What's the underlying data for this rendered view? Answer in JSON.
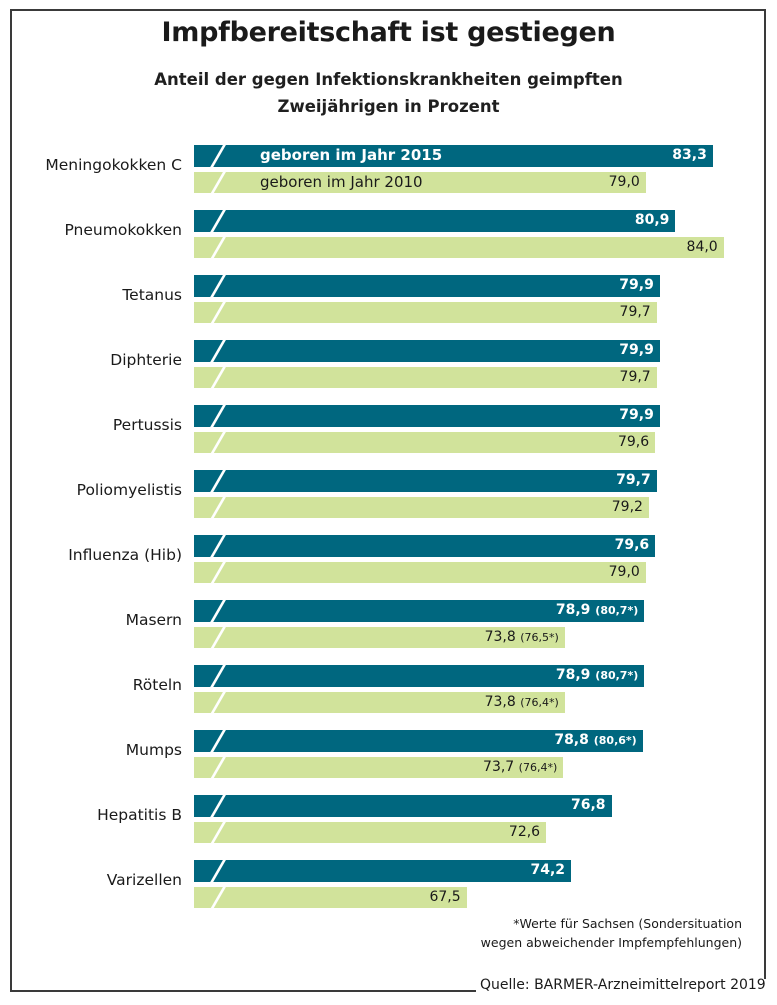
{
  "chart_data": {
    "type": "bar",
    "orientation": "horizontal",
    "title": "Impfbereitschaft ist gestiegen",
    "subtitle": [
      "Anteil der gegen Infektionskrankheiten geimpften",
      "Zweijährigen in Prozent"
    ],
    "xlabel": "",
    "ylabel": "",
    "xlim": [
      50,
      85
    ],
    "axis_break": true,
    "grid": false,
    "legend_placement": "inside-first-row",
    "categories": [
      "Meningokokken C",
      "Pneumokokken",
      "Tetanus",
      "Diphterie",
      "Pertussis",
      "Poliomyelistis",
      "Influenza (Hib)",
      "Masern",
      "Röteln",
      "Mumps",
      "Hepatitis B",
      "Varizellen"
    ],
    "series": [
      {
        "name": "geboren im Jahr 2015",
        "color": "#00677f",
        "values": [
          83.3,
          80.9,
          79.9,
          79.9,
          79.9,
          79.7,
          79.6,
          78.9,
          78.9,
          78.8,
          76.8,
          74.2
        ],
        "labels": [
          "83,3",
          "80,9",
          "79,9",
          "79,9",
          "79,9",
          "79,7",
          "79,6",
          "78,9",
          "78,9",
          "78,8",
          "76,8",
          "74,2"
        ],
        "sachsen_labels": [
          "",
          "",
          "",
          "",
          "",
          "",
          "",
          "(80,7*)",
          "(80,7*)",
          "(80,6*)",
          "",
          ""
        ]
      },
      {
        "name": "geboren im Jahr 2010",
        "color": "#d1e39b",
        "values": [
          79.0,
          84.0,
          79.7,
          79.7,
          79.6,
          79.2,
          79.0,
          73.8,
          73.8,
          73.7,
          72.6,
          67.5
        ],
        "labels": [
          "79,0",
          "84,0",
          "79,7",
          "79,7",
          "79,6",
          "79,2",
          "79,0",
          "73,8",
          "73,8",
          "73,7",
          "72,6",
          "67,5"
        ],
        "sachsen_labels": [
          "",
          "",
          "",
          "",
          "",
          "",
          "",
          "(76,5*)",
          "(76,4*)",
          "(76,4*)",
          "",
          ""
        ]
      }
    ],
    "footnote": [
      "*Werte für Sachsen (Sondersituation",
      "wegen abweichender Impfempfehlungen)"
    ],
    "source": "Quelle: BARMER-Arzneimittelreport 2019"
  }
}
